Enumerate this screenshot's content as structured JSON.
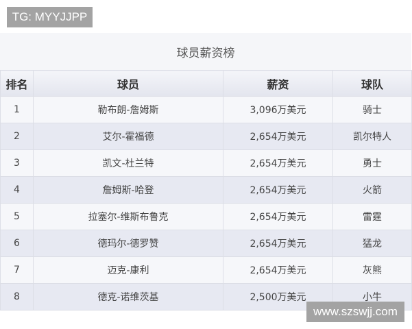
{
  "watermarks": {
    "top": "TG: MYYJJPP",
    "bottom": "www.szswjj.com"
  },
  "table": {
    "title": "球员薪资榜",
    "headers": [
      "排名",
      "球员",
      "薪资",
      "球队"
    ],
    "rows": [
      [
        "1",
        "勒布朗-詹姆斯",
        "3,096万美元",
        "骑士"
      ],
      [
        "2",
        "艾尔-霍福德",
        "2,654万美元",
        "凯尔特人"
      ],
      [
        "3",
        "凯文-杜兰特",
        "2,654万美元",
        "勇士"
      ],
      [
        "4",
        "詹姆斯-哈登",
        "2,654万美元",
        "火箭"
      ],
      [
        "5",
        "拉塞尔-维斯布鲁克",
        "2,654万美元",
        "雷霆"
      ],
      [
        "6",
        "德玛尔-德罗赞",
        "2,654万美元",
        "猛龙"
      ],
      [
        "7",
        "迈克-康利",
        "2,654万美元",
        "灰熊"
      ],
      [
        "8",
        "德克-诺维茨基",
        "2,500万美元",
        "小牛"
      ]
    ]
  }
}
